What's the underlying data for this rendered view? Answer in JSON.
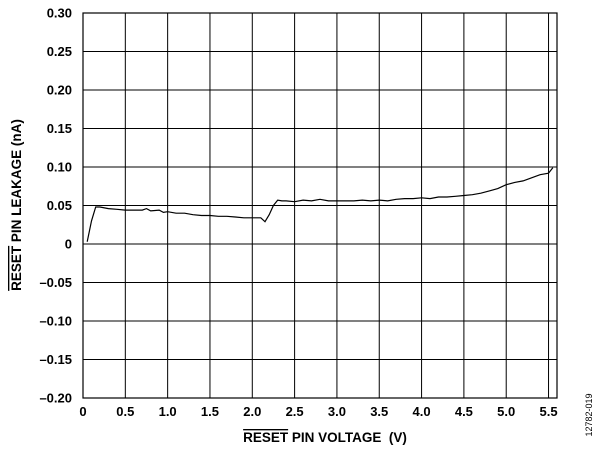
{
  "chart_data": {
    "type": "line",
    "xlabel_overline": "RESET",
    "xlabel_rest": " PIN VOLTAGE  (V)",
    "ylabel_overline": "RESET",
    "ylabel_rest": " PIN LEAKAGE (nA)",
    "xlim": [
      0,
      5.6
    ],
    "ylim": [
      -0.2,
      0.3
    ],
    "x_ticks": [
      0,
      0.5,
      1.0,
      1.5,
      2.0,
      2.5,
      3.0,
      3.5,
      4.0,
      4.5,
      5.0,
      5.5
    ],
    "x_tick_labels": [
      "0",
      "0.5",
      "1.0",
      "1.5",
      "2.0",
      "2.5",
      "3.0",
      "3.5",
      "4.0",
      "4.5",
      "5.0",
      "5.5"
    ],
    "y_ticks": [
      0.3,
      0.25,
      0.2,
      0.15,
      0.1,
      0.05,
      0,
      -0.05,
      -0.1,
      -0.15,
      -0.2
    ],
    "y_tick_labels": [
      "0.30",
      "0.25",
      "0.20",
      "0.15",
      "0.10",
      "0.05",
      "0",
      "–0.05",
      "–0.10",
      "–0.15",
      "–0.20"
    ],
    "grid": true,
    "series": [
      {
        "x": [
          0.05,
          0.1,
          0.15,
          0.2,
          0.3,
          0.4,
          0.5,
          0.6,
          0.7,
          0.75,
          0.8,
          0.9,
          0.95,
          1.0,
          1.1,
          1.2,
          1.3,
          1.4,
          1.5,
          1.6,
          1.7,
          1.8,
          1.9,
          2.0,
          2.1,
          2.15,
          2.2,
          2.25,
          2.3,
          2.35,
          2.4,
          2.5,
          2.6,
          2.7,
          2.8,
          2.9,
          3.0,
          3.1,
          3.2,
          3.3,
          3.4,
          3.5,
          3.6,
          3.7,
          3.8,
          3.9,
          4.0,
          4.1,
          4.2,
          4.3,
          4.4,
          4.5,
          4.6,
          4.7,
          4.8,
          4.9,
          5.0,
          5.1,
          5.2,
          5.3,
          5.4,
          5.5,
          5.55
        ],
        "y": [
          0.003,
          0.03,
          0.048,
          0.048,
          0.046,
          0.045,
          0.044,
          0.044,
          0.044,
          0.046,
          0.043,
          0.044,
          0.041,
          0.042,
          0.04,
          0.04,
          0.038,
          0.037,
          0.037,
          0.036,
          0.036,
          0.035,
          0.034,
          0.034,
          0.034,
          0.029,
          0.038,
          0.05,
          0.057,
          0.056,
          0.056,
          0.055,
          0.057,
          0.056,
          0.058,
          0.056,
          0.056,
          0.056,
          0.056,
          0.057,
          0.056,
          0.057,
          0.056,
          0.058,
          0.059,
          0.059,
          0.06,
          0.059,
          0.061,
          0.061,
          0.062,
          0.063,
          0.064,
          0.066,
          0.069,
          0.072,
          0.077,
          0.08,
          0.082,
          0.086,
          0.09,
          0.092,
          0.099
        ]
      }
    ]
  },
  "figure_id": "12782-019"
}
